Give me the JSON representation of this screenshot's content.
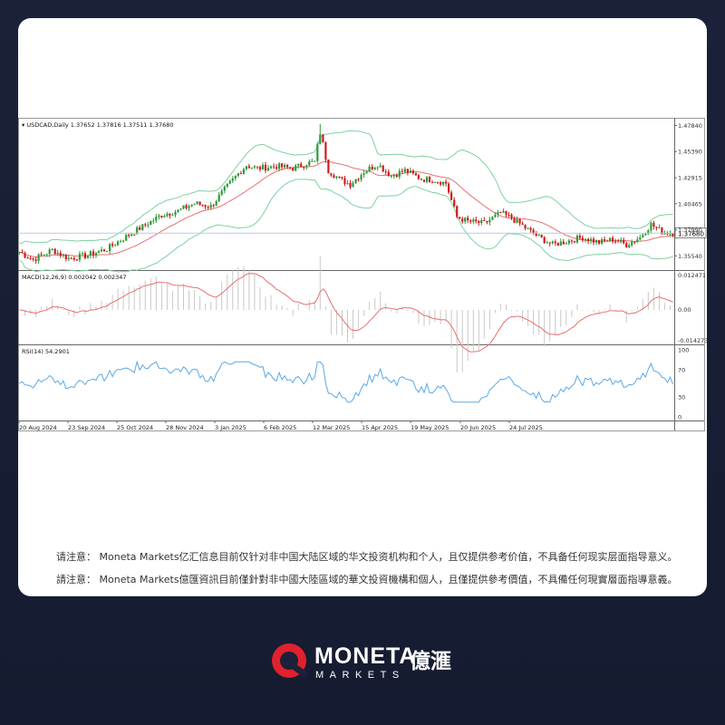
{
  "chart_data": {
    "type": "candlestick",
    "symbol": "USDCAD,Daily",
    "ohlc_header": "1.37652 1.37816 1.37511 1.37680",
    "last_price": "1.37680",
    "colors": {
      "up": "#2e9b3a",
      "down": "#d11a1a",
      "bb": "#7fd0a0",
      "ma": "#e87070",
      "macd": "#c8c8c8",
      "signal": "#e87070",
      "rsi": "#5aa9e6"
    },
    "x_labels": [
      "20 Aug 2024",
      "23 Sep 2024",
      "25 Oct 2024",
      "28 Nov 2024",
      "3 Jan 2025",
      "6 Feb 2025",
      "12 Mar 2025",
      "15 Apr 2025",
      "19 May 2025",
      "20 Jun 2025",
      "24 Jul 2025"
    ],
    "price_panel": {
      "ylim": [
        1.342,
        1.484
      ],
      "y_ticks": [
        "1.47840",
        "1.45390",
        "1.42915",
        "1.40465",
        "1.37990",
        "1.35540"
      ],
      "anchors": [
        [
          0,
          1.359
        ],
        [
          5,
          1.352
        ],
        [
          12,
          1.361
        ],
        [
          18,
          1.353
        ],
        [
          25,
          1.356
        ],
        [
          32,
          1.362
        ],
        [
          38,
          1.372
        ],
        [
          45,
          1.383
        ],
        [
          52,
          1.394
        ],
        [
          58,
          1.398
        ],
        [
          64,
          1.405
        ],
        [
          70,
          1.402
        ],
        [
          75,
          1.418
        ],
        [
          80,
          1.433
        ],
        [
          83,
          1.441
        ],
        [
          87,
          1.438
        ],
        [
          94,
          1.44
        ],
        [
          100,
          1.438
        ],
        [
          105,
          1.443
        ],
        [
          108,
          1.444
        ],
        [
          110,
          1.473
        ],
        [
          113,
          1.436
        ],
        [
          117,
          1.428
        ],
        [
          121,
          1.423
        ],
        [
          126,
          1.435
        ],
        [
          131,
          1.442
        ],
        [
          136,
          1.431
        ],
        [
          141,
          1.436
        ],
        [
          147,
          1.428
        ],
        [
          152,
          1.427
        ],
        [
          156,
          1.424
        ],
        [
          160,
          1.392
        ],
        [
          164,
          1.388
        ],
        [
          170,
          1.386
        ],
        [
          176,
          1.396
        ],
        [
          180,
          1.391
        ],
        [
          185,
          1.382
        ],
        [
          190,
          1.373
        ],
        [
          195,
          1.366
        ],
        [
          200,
          1.369
        ],
        [
          206,
          1.373
        ],
        [
          212,
          1.368
        ],
        [
          217,
          1.371
        ],
        [
          222,
          1.366
        ],
        [
          227,
          1.373
        ],
        [
          231,
          1.385
        ],
        [
          235,
          1.378
        ],
        [
          239,
          1.3768
        ]
      ]
    },
    "macd_panel": {
      "label": "MACD(12,26,9) 0.002042 0.002347",
      "y_ticks": [
        "0.012471",
        "0.00",
        "-0.014273"
      ]
    },
    "rsi_panel": {
      "label": "RSI(14) 54.2901",
      "y_ticks": [
        "100",
        "70",
        "30",
        "0"
      ]
    }
  },
  "disclaimer": {
    "simplified": "请注意： Moneta Markets亿汇信息目前仅针对非中国大陆区域的华文投资机构和个人，且仅提供参考价值，不具备任何现实层面指导意义。",
    "traditional": "請注意： Moneta Markets億匯資訊目前僅針對非中國大陸區域的華文投資機構和個人，且僅提供參考價值，不具備任何現實層面指導意義。"
  },
  "brand": {
    "name": "MONETA",
    "cn": "億滙",
    "sub": "MARKETS"
  }
}
